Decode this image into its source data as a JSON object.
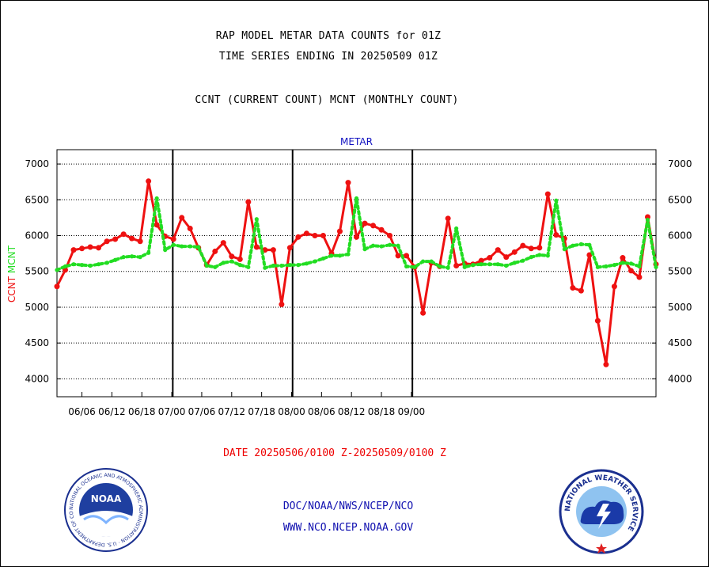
{
  "header": {
    "title_line1": "RAP MODEL METAR DATA COUNTS for 01Z",
    "title_line2": "TIME SERIES ENDING IN 20250509 01Z",
    "title_line3": "CCNT (CURRENT COUNT) MCNT (MONTHLY COUNT)"
  },
  "footer": {
    "date_range": "DATE 20250506/0100 Z-20250509/0100 Z",
    "link1": "DOC/NOAA/NWS/NCEP/NCO",
    "link2": "WWW.NCO.NCEP.NOAA.GOV"
  },
  "logos": {
    "noaa_text": "NOAA",
    "noaa_ring": "NATIONAL OCEANIC AND ATMOSPHERIC ADMINISTRATION · U.S. DEPARTMENT OF COMMERCE",
    "nws_ring": "NATIONAL WEATHER SERVICE"
  },
  "chart_data": {
    "type": "line",
    "title": "METAR",
    "ylabel_left_1": "CCNT",
    "ylabel_left_2": "MCNT",
    "ylim": [
      3750,
      7200
    ],
    "yticks": [
      4000,
      4500,
      5000,
      5500,
      6000,
      6500,
      7000
    ],
    "xlim": [
      0,
      60
    ],
    "xticks": [
      {
        "x": 2.5,
        "label": "06/06"
      },
      {
        "x": 5.5,
        "label": "06/12"
      },
      {
        "x": 8.5,
        "label": "06/18"
      },
      {
        "x": 11.5,
        "label": "07/00"
      },
      {
        "x": 14.5,
        "label": "07/06"
      },
      {
        "x": 17.5,
        "label": "07/12"
      },
      {
        "x": 20.5,
        "label": "07/18"
      },
      {
        "x": 23.5,
        "label": "08/00"
      },
      {
        "x": 26.5,
        "label": "08/06"
      },
      {
        "x": 29.5,
        "label": "08/12"
      },
      {
        "x": 32.5,
        "label": "08/18"
      },
      {
        "x": 35.5,
        "label": "09/00"
      }
    ],
    "day_boundaries": [
      11.6,
      23.6,
      35.6
    ],
    "grid": true,
    "colors": {
      "ccnt": "#ee1111",
      "mcnt": "#22dd22",
      "boundary": "#000000",
      "grid": "#000000",
      "title": "#1010c0"
    },
    "series": [
      {
        "name": "CCNT",
        "values": [
          5290,
          5520,
          5800,
          5820,
          5840,
          5830,
          5920,
          5950,
          6020,
          5960,
          5920,
          6760,
          6150,
          5990,
          5950,
          6250,
          6100,
          5830,
          5590,
          5780,
          5900,
          5710,
          5670,
          6470,
          5840,
          5800,
          5800,
          5040,
          5830,
          5980,
          6030,
          6000,
          6000,
          5750,
          6060,
          6740,
          5980,
          6170,
          6140,
          6080,
          6000,
          5720,
          5720,
          5560,
          4920,
          5620,
          5570,
          6240,
          5580,
          5610,
          5600,
          5650,
          5690,
          5800,
          5700,
          5770,
          5860,
          5820,
          5830,
          6580,
          6010,
          5960,
          5270,
          5230,
          5730,
          4810,
          4200,
          5290,
          5690,
          5510,
          5420,
          6260,
          5600
        ]
      },
      {
        "name": "MCNT",
        "values": [
          5520,
          5570,
          5600,
          5590,
          5580,
          5600,
          5620,
          5660,
          5700,
          5710,
          5700,
          5760,
          6520,
          5800,
          5870,
          5850,
          5850,
          5840,
          5580,
          5560,
          5620,
          5640,
          5590,
          5560,
          6230,
          5550,
          5580,
          5580,
          5590,
          5590,
          5610,
          5640,
          5680,
          5720,
          5720,
          5740,
          6520,
          5810,
          5860,
          5850,
          5870,
          5860,
          5570,
          5560,
          5640,
          5640,
          5570,
          5550,
          6100,
          5560,
          5590,
          5600,
          5600,
          5600,
          5580,
          5620,
          5650,
          5700,
          5730,
          5720,
          6490,
          5810,
          5860,
          5880,
          5870,
          5560,
          5570,
          5590,
          5620,
          5610,
          5570,
          6220,
          5560
        ]
      }
    ]
  }
}
